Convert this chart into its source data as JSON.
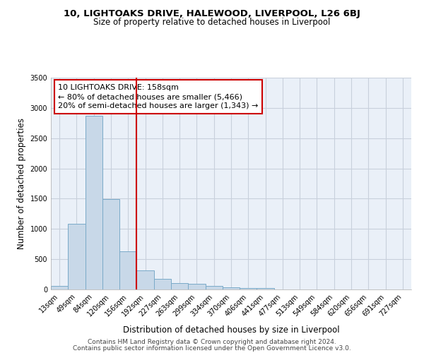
{
  "title": "10, LIGHTOAKS DRIVE, HALEWOOD, LIVERPOOL, L26 6BJ",
  "subtitle": "Size of property relative to detached houses in Liverpool",
  "xlabel": "Distribution of detached houses by size in Liverpool",
  "ylabel": "Number of detached properties",
  "categories": [
    "13sqm",
    "49sqm",
    "84sqm",
    "120sqm",
    "156sqm",
    "192sqm",
    "227sqm",
    "263sqm",
    "299sqm",
    "334sqm",
    "370sqm",
    "406sqm",
    "441sqm",
    "477sqm",
    "513sqm",
    "549sqm",
    "584sqm",
    "620sqm",
    "656sqm",
    "691sqm",
    "727sqm"
  ],
  "values": [
    60,
    1090,
    2870,
    1490,
    630,
    315,
    175,
    110,
    90,
    55,
    30,
    25,
    25,
    0,
    0,
    0,
    0,
    0,
    0,
    0,
    0
  ],
  "bar_color": "#c8d8e8",
  "bar_edge_color": "#7aaac8",
  "vline_color": "#cc0000",
  "annotation_line1": "10 LIGHTOAKS DRIVE: 158sqm",
  "annotation_line2": "← 80% of detached houses are smaller (5,466)",
  "annotation_line3": "20% of semi-detached houses are larger (1,343) →",
  "annotation_box_color": "#ffffff",
  "annotation_box_edge": "#cc0000",
  "ylim": [
    0,
    3500
  ],
  "yticks": [
    0,
    500,
    1000,
    1500,
    2000,
    2500,
    3000,
    3500
  ],
  "footer1": "Contains HM Land Registry data © Crown copyright and database right 2024.",
  "footer2": "Contains public sector information licensed under the Open Government Licence v3.0.",
  "bg_color": "#ffffff",
  "plot_bg_color": "#eaf0f8",
  "grid_color": "#c8d0dc",
  "title_fontsize": 9.5,
  "subtitle_fontsize": 8.5,
  "axis_label_fontsize": 8.5,
  "tick_fontsize": 7,
  "annotation_fontsize": 8,
  "footer_fontsize": 6.5
}
